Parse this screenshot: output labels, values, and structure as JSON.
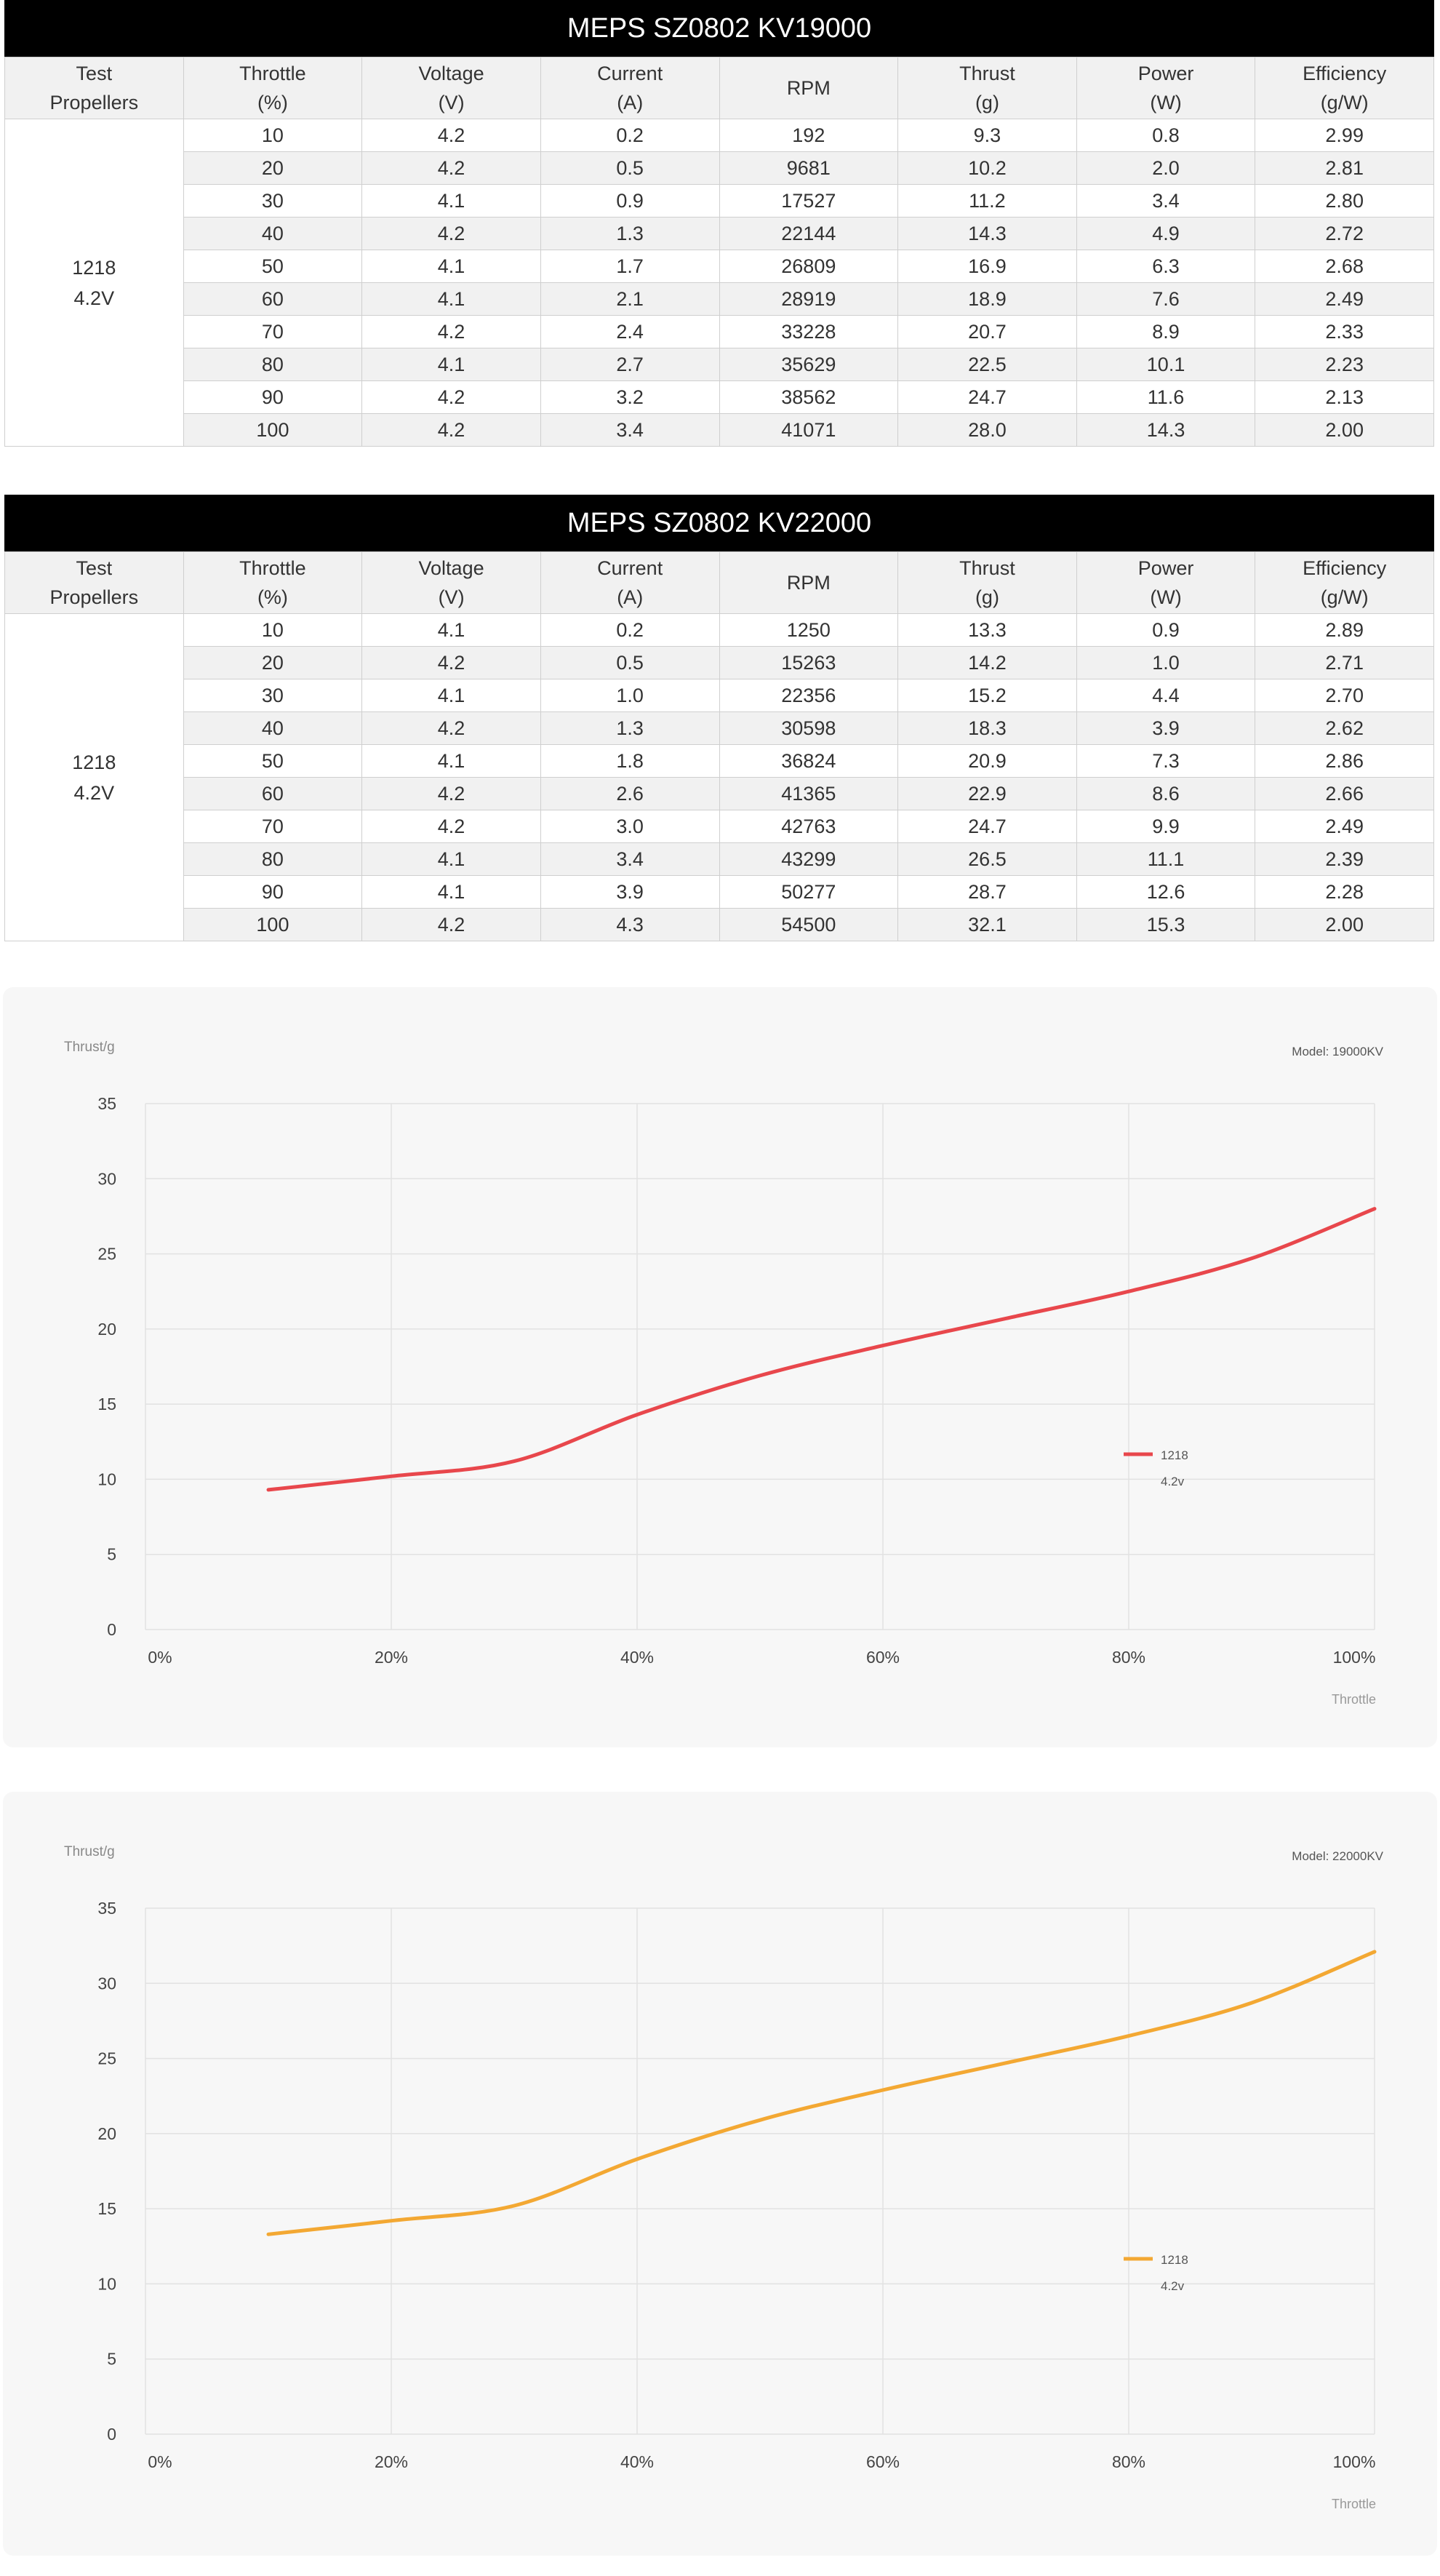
{
  "tables": [
    {
      "title": "MEPS SZ0802 KV19000",
      "headers": [
        {
          "line1": "Test",
          "line2": "Propellers"
        },
        {
          "line1": "Throttle",
          "line2": "(%)"
        },
        {
          "line1": "Voltage",
          "line2": "(V)"
        },
        {
          "line1": "Current",
          "line2": "(A)"
        },
        {
          "line1": "RPM",
          "line2": ""
        },
        {
          "line1": "Thrust",
          "line2": "(g)"
        },
        {
          "line1": "Power",
          "line2": "(W)"
        },
        {
          "line1": "Efficiency",
          "line2": "(g/W)"
        }
      ],
      "propeller": "1218",
      "voltage_label": "4.2V",
      "rows": [
        [
          "10",
          "4.2",
          "0.2",
          "192",
          "9.3",
          "0.8",
          "2.99"
        ],
        [
          "20",
          "4.2",
          "0.5",
          "9681",
          "10.2",
          "2.0",
          "2.81"
        ],
        [
          "30",
          "4.1",
          "0.9",
          "17527",
          "11.2",
          "3.4",
          "2.80"
        ],
        [
          "40",
          "4.2",
          "1.3",
          "22144",
          "14.3",
          "4.9",
          "2.72"
        ],
        [
          "50",
          "4.1",
          "1.7",
          "26809",
          "16.9",
          "6.3",
          "2.68"
        ],
        [
          "60",
          "4.1",
          "2.1",
          "28919",
          "18.9",
          "7.6",
          "2.49"
        ],
        [
          "70",
          "4.2",
          "2.4",
          "33228",
          "20.7",
          "8.9",
          "2.33"
        ],
        [
          "80",
          "4.1",
          "2.7",
          "35629",
          "22.5",
          "10.1",
          "2.23"
        ],
        [
          "90",
          "4.2",
          "3.2",
          "38562",
          "24.7",
          "11.6",
          "2.13"
        ],
        [
          "100",
          "4.2",
          "3.4",
          "41071",
          "28.0",
          "14.3",
          "2.00"
        ]
      ]
    },
    {
      "title": "MEPS SZ0802 KV22000",
      "headers": [
        {
          "line1": "Test",
          "line2": "Propellers"
        },
        {
          "line1": "Throttle",
          "line2": "(%)"
        },
        {
          "line1": "Voltage",
          "line2": "(V)"
        },
        {
          "line1": "Current",
          "line2": "(A)"
        },
        {
          "line1": "RPM",
          "line2": ""
        },
        {
          "line1": "Thrust",
          "line2": "(g)"
        },
        {
          "line1": "Power",
          "line2": "(W)"
        },
        {
          "line1": "Efficiency",
          "line2": "(g/W)"
        }
      ],
      "propeller": "1218",
      "voltage_label": "4.2V",
      "rows": [
        [
          "10",
          "4.1",
          "0.2",
          "1250",
          "13.3",
          "0.9",
          "2.89"
        ],
        [
          "20",
          "4.2",
          "0.5",
          "15263",
          "14.2",
          "1.0",
          "2.71"
        ],
        [
          "30",
          "4.1",
          "1.0",
          "22356",
          "15.2",
          "4.4",
          "2.70"
        ],
        [
          "40",
          "4.2",
          "1.3",
          "30598",
          "18.3",
          "3.9",
          "2.62"
        ],
        [
          "50",
          "4.1",
          "1.8",
          "36824",
          "20.9",
          "7.3",
          "2.86"
        ],
        [
          "60",
          "4.2",
          "2.6",
          "41365",
          "22.9",
          "8.6",
          "2.66"
        ],
        [
          "70",
          "4.2",
          "3.0",
          "42763",
          "24.7",
          "9.9",
          "2.49"
        ],
        [
          "80",
          "4.1",
          "3.4",
          "43299",
          "26.5",
          "11.1",
          "2.39"
        ],
        [
          "90",
          "4.1",
          "3.9",
          "50277",
          "28.7",
          "12.6",
          "2.28"
        ],
        [
          "100",
          "4.2",
          "4.3",
          "54500",
          "32.1",
          "15.3",
          "2.00"
        ]
      ]
    }
  ],
  "chart_data": [
    {
      "type": "line",
      "ylabel": "Thrust/g",
      "xlabel": "Throttle",
      "model_label": "Model: 19000KV",
      "x": [
        10,
        20,
        30,
        40,
        50,
        60,
        70,
        80,
        90,
        100
      ],
      "x_ticks": [
        "0%",
        "20%",
        "40%",
        "60%",
        "80%",
        "100%"
      ],
      "x_tick_values": [
        0,
        20,
        40,
        60,
        80,
        100
      ],
      "y_ticks": [
        "0",
        "5",
        "10",
        "15",
        "20",
        "25",
        "30",
        "35"
      ],
      "y_tick_values": [
        0,
        5,
        10,
        15,
        20,
        25,
        30,
        35
      ],
      "xlim": [
        0,
        100
      ],
      "ylim": [
        0,
        35
      ],
      "grid": true,
      "legend_position": "center-right",
      "series": [
        {
          "name": "1218",
          "subname": "4.2v",
          "color": "#e8474c",
          "values": [
            9.3,
            10.2,
            11.2,
            14.3,
            16.9,
            18.9,
            20.7,
            22.5,
            24.7,
            28.0
          ]
        }
      ]
    },
    {
      "type": "line",
      "ylabel": "Thrust/g",
      "xlabel": "Throttle",
      "model_label": "Model: 22000KV",
      "x": [
        10,
        20,
        30,
        40,
        50,
        60,
        70,
        80,
        90,
        100
      ],
      "x_ticks": [
        "0%",
        "20%",
        "40%",
        "60%",
        "80%",
        "100%"
      ],
      "x_tick_values": [
        0,
        20,
        40,
        60,
        80,
        100
      ],
      "y_ticks": [
        "0",
        "5",
        "10",
        "15",
        "20",
        "25",
        "30",
        "35"
      ],
      "y_tick_values": [
        0,
        5,
        10,
        15,
        20,
        25,
        30,
        35
      ],
      "xlim": [
        0,
        100
      ],
      "ylim": [
        0,
        35
      ],
      "grid": true,
      "legend_position": "center-right",
      "series": [
        {
          "name": "1218",
          "subname": "4.2v",
          "color": "#f3a833",
          "values": [
            13.3,
            14.2,
            15.2,
            18.3,
            20.9,
            22.9,
            24.7,
            26.5,
            28.7,
            32.1
          ]
        }
      ]
    }
  ]
}
